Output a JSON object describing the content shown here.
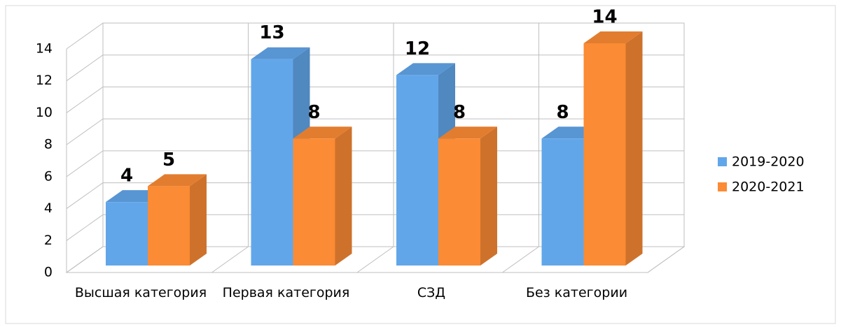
{
  "chart_data": {
    "type": "bar3d",
    "categories": [
      "Высшая категория",
      "Первая категория",
      "СЗД",
      "Без категории"
    ],
    "series": [
      {
        "name": "2019-2020",
        "color": "#62a6ea",
        "values": [
          4,
          13,
          12,
          8
        ]
      },
      {
        "name": "2020-2021",
        "color": "#fb8b34",
        "values": [
          5,
          8,
          8,
          14
        ]
      }
    ],
    "ylim": [
      0,
      14
    ],
    "yticks": [
      0,
      2,
      4,
      6,
      8,
      10,
      12,
      14
    ],
    "grid": true,
    "legend": "right"
  }
}
